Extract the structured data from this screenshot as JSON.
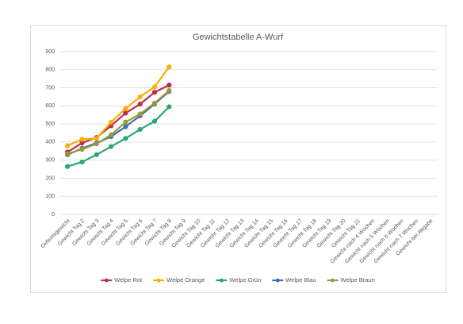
{
  "chart_data": {
    "type": "line",
    "title": "Gewichtstabelle A-Wurf",
    "categories": [
      "Geburtsgewicht",
      "Gewicht Tag 2",
      "Gewicht Tag 3",
      "Gewicht Tag 4",
      "Gewicht Tag 5",
      "Gewicht Tag 6",
      "Gewicht Tag 7",
      "Gewicht Tag 8",
      "Gewicht Tag 9",
      "Gewicht Tag 10",
      "Gewicht Tag 11",
      "Gewicht Tag 12",
      "Gewicht Tag 13",
      "Gewicht Tag 14",
      "Gewicht Tag 15",
      "Gewicht Tag 16",
      "Gewicht Tag 17",
      "Gewicht Tag 18",
      "Gewicht Tag 19",
      "Gewicht Tag 20",
      "Gewicht Tag 21",
      "Gewicht nach 4 Wochen",
      "Gewicht nach 5 Wochen",
      "Gewicht nach 6 Wochen",
      "Gewicht nach 7 Wochen",
      "Gewicht bei Abgabe"
    ],
    "series": [
      {
        "name": "Welpe Rot",
        "color": "#be2d4b",
        "values": [
          345,
          395,
          425,
          490,
          560,
          610,
          675,
          715,
          null,
          null,
          null,
          null,
          null,
          null,
          null,
          null,
          null,
          null,
          null,
          null,
          null,
          null,
          null,
          null,
          null,
          null
        ]
      },
      {
        "name": "Welpe Orange",
        "color": "#f5b000",
        "values": [
          380,
          415,
          420,
          510,
          585,
          650,
          705,
          815,
          null,
          null,
          null,
          null,
          null,
          null,
          null,
          null,
          null,
          null,
          null,
          null,
          null,
          null,
          null,
          null,
          null,
          null
        ]
      },
      {
        "name": "Welpe Grün",
        "color": "#27a872",
        "values": [
          265,
          290,
          330,
          375,
          420,
          470,
          515,
          595,
          null,
          null,
          null,
          null,
          null,
          null,
          null,
          null,
          null,
          null,
          null,
          null,
          null,
          null,
          null,
          null,
          null,
          null
        ]
      },
      {
        "name": "Welpe Blau",
        "color": "#3b6fb6",
        "values": [
          330,
          365,
          395,
          430,
          485,
          545,
          610,
          680,
          null,
          null,
          null,
          null,
          null,
          null,
          null,
          null,
          null,
          null,
          null,
          null,
          null,
          null,
          null,
          null,
          null,
          null
        ]
      },
      {
        "name": "Welpe Braun",
        "color": "#9b9a36",
        "values": [
          335,
          360,
          390,
          440,
          510,
          555,
          615,
          685,
          null,
          null,
          null,
          null,
          null,
          null,
          null,
          null,
          null,
          null,
          null,
          null,
          null,
          null,
          null,
          null,
          null,
          null
        ]
      }
    ],
    "ylim": [
      0,
      900
    ],
    "yticks": [
      0,
      100,
      200,
      300,
      400,
      500,
      600,
      700,
      800,
      900
    ],
    "grid": true,
    "legend": "bottom"
  }
}
